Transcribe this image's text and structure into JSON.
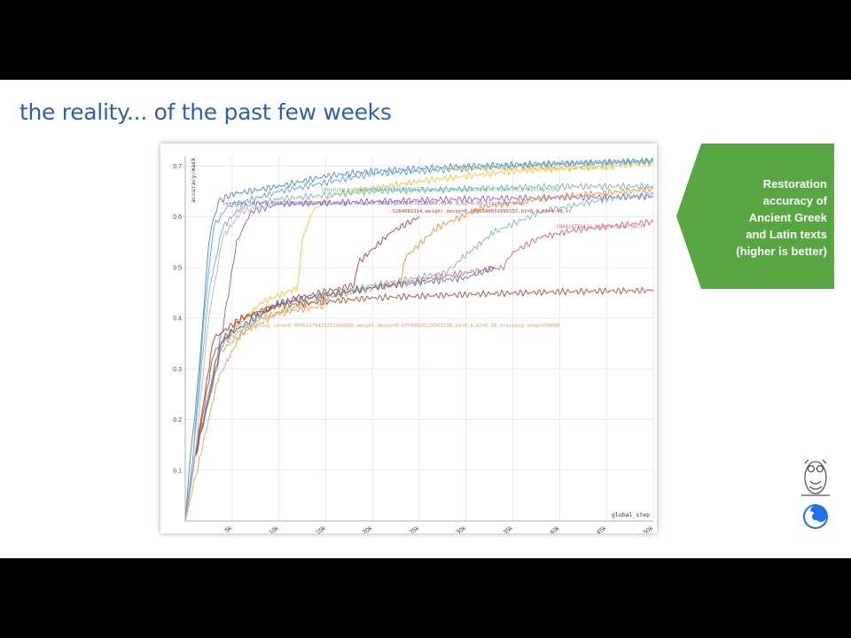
{
  "slide": {
    "title": "the reality... of the past few weeks",
    "callout": {
      "lines": [
        "Restoration",
        "accuracy of",
        "Ancient Greek",
        "and Latin texts",
        "(higher is better)"
      ],
      "color": "#58a642"
    }
  },
  "chart_data": {
    "type": "line",
    "ylabel": "accuracy/mask",
    "xlabel": "global_step",
    "xlim": [
      0,
      50000
    ],
    "ylim": [
      0,
      0.72
    ],
    "x_ticks": [
      {
        "value": 5000,
        "label": "5k"
      },
      {
        "value": 10000,
        "label": "10k"
      },
      {
        "value": 15000,
        "label": "15k"
      },
      {
        "value": 20000,
        "label": "20k"
      },
      {
        "value": 25000,
        "label": "25k"
      },
      {
        "value": 30000,
        "label": "30k"
      },
      {
        "value": 35000,
        "label": "35k"
      },
      {
        "value": 40000,
        "label": "40k"
      },
      {
        "value": 45000,
        "label": "45k"
      },
      {
        "value": 50000,
        "label": "50k"
      }
    ],
    "y_ticks": [
      {
        "value": 0.1,
        "label": "0.1"
      },
      {
        "value": 0.2,
        "label": "0.2"
      },
      {
        "value": 0.3,
        "label": "0.3"
      },
      {
        "value": 0.4,
        "label": "0.4"
      },
      {
        "value": 0.5,
        "label": "0.5"
      },
      {
        "value": 0.6,
        "label": "0.6"
      },
      {
        "value": 0.7,
        "label": "0.7"
      }
    ],
    "grid": true,
    "series": [
      {
        "color": "#4a86c8",
        "points": [
          [
            0,
            0
          ],
          [
            500,
            0.12
          ],
          [
            1500,
            0.3
          ],
          [
            2500,
            0.55
          ],
          [
            3500,
            0.63
          ],
          [
            5000,
            0.645
          ],
          [
            10000,
            0.66
          ],
          [
            15000,
            0.68
          ],
          [
            20000,
            0.69
          ],
          [
            30000,
            0.7
          ],
          [
            40000,
            0.705
          ],
          [
            50000,
            0.71
          ]
        ]
      },
      {
        "color": "#5aa0dc",
        "points": [
          [
            0,
            0
          ],
          [
            800,
            0.12
          ],
          [
            2000,
            0.4
          ],
          [
            3000,
            0.58
          ],
          [
            4500,
            0.62
          ],
          [
            10000,
            0.65
          ],
          [
            20000,
            0.685
          ],
          [
            30000,
            0.695
          ],
          [
            40000,
            0.705
          ],
          [
            50000,
            0.71
          ]
        ]
      },
      {
        "color": "#f1c232",
        "points": [
          [
            0,
            0
          ],
          [
            1000,
            0.12
          ],
          [
            4000,
            0.35
          ],
          [
            8000,
            0.43
          ],
          [
            12000,
            0.46
          ],
          [
            12500,
            0.55
          ],
          [
            13500,
            0.61
          ],
          [
            16000,
            0.645
          ],
          [
            25000,
            0.67
          ],
          [
            35000,
            0.69
          ],
          [
            50000,
            0.705
          ]
        ]
      },
      {
        "color": "#6fb8a8",
        "points": [
          [
            0,
            0
          ],
          [
            800,
            0.12
          ],
          [
            2500,
            0.45
          ],
          [
            4000,
            0.58
          ],
          [
            6000,
            0.62
          ],
          [
            10000,
            0.635
          ],
          [
            20000,
            0.65
          ],
          [
            30000,
            0.655
          ],
          [
            40000,
            0.66
          ],
          [
            50000,
            0.66
          ]
        ]
      },
      {
        "color": "#8a5cc0",
        "points": [
          [
            0,
            0
          ],
          [
            1000,
            0.12
          ],
          [
            4000,
            0.38
          ],
          [
            5500,
            0.55
          ],
          [
            7000,
            0.61
          ],
          [
            10000,
            0.625
          ],
          [
            20000,
            0.63
          ],
          [
            30000,
            0.635
          ],
          [
            40000,
            0.638
          ],
          [
            50000,
            0.64
          ]
        ]
      },
      {
        "color": "#c0392b",
        "points": [
          [
            0,
            0
          ],
          [
            1000,
            0.12
          ],
          [
            3000,
            0.36
          ],
          [
            6000,
            0.4
          ],
          [
            12000,
            0.44
          ],
          [
            18000,
            0.465
          ],
          [
            18500,
            0.51
          ],
          [
            22000,
            0.57
          ],
          [
            25000,
            0.6
          ]
        ]
      },
      {
        "color": "#e69138",
        "points": [
          [
            0,
            0
          ],
          [
            1000,
            0.12
          ],
          [
            3500,
            0.33
          ],
          [
            8000,
            0.4
          ],
          [
            15000,
            0.44
          ],
          [
            23000,
            0.47
          ],
          [
            23500,
            0.52
          ],
          [
            27000,
            0.58
          ],
          [
            32000,
            0.62
          ],
          [
            40000,
            0.64
          ],
          [
            50000,
            0.655
          ]
        ]
      },
      {
        "color": "#76b7b2",
        "points": [
          [
            0,
            0
          ],
          [
            1000,
            0.12
          ],
          [
            4000,
            0.35
          ],
          [
            10000,
            0.43
          ],
          [
            20000,
            0.465
          ],
          [
            28000,
            0.49
          ],
          [
            29000,
            0.51
          ],
          [
            33000,
            0.57
          ],
          [
            38000,
            0.61
          ],
          [
            45000,
            0.635
          ],
          [
            50000,
            0.645
          ]
        ]
      },
      {
        "color": "#d6607a",
        "points": [
          [
            0,
            0
          ],
          [
            1000,
            0.12
          ],
          [
            4000,
            0.36
          ],
          [
            10000,
            0.43
          ],
          [
            20000,
            0.46
          ],
          [
            30000,
            0.49
          ],
          [
            34000,
            0.5
          ],
          [
            35000,
            0.53
          ],
          [
            38000,
            0.56
          ],
          [
            42000,
            0.575
          ],
          [
            50000,
            0.59
          ]
        ]
      },
      {
        "color": "#5577aa",
        "points": [
          [
            0,
            0
          ],
          [
            1000,
            0.12
          ],
          [
            4000,
            0.36
          ],
          [
            10000,
            0.43
          ],
          [
            20000,
            0.46
          ],
          [
            30000,
            0.48
          ],
          [
            33000,
            0.5
          ]
        ]
      },
      {
        "color": "#a0522d",
        "points": [
          [
            0,
            0
          ],
          [
            1000,
            0.12
          ],
          [
            3000,
            0.33
          ],
          [
            6000,
            0.4
          ],
          [
            10000,
            0.425
          ],
          [
            20000,
            0.44
          ],
          [
            30000,
            0.447
          ],
          [
            40000,
            0.452
          ],
          [
            50000,
            0.455
          ]
        ]
      },
      {
        "color": "#e0a25a",
        "points": [
          [
            0,
            0
          ],
          [
            1500,
            0.12
          ],
          [
            3500,
            0.28
          ],
          [
            6000,
            0.37
          ],
          [
            10000,
            0.41
          ],
          [
            15000,
            0.425
          ]
        ]
      },
      {
        "color": "#c5a8e0",
        "points": [
          [
            0,
            0
          ],
          [
            1000,
            0.12
          ],
          [
            2500,
            0.4
          ],
          [
            4000,
            0.56
          ],
          [
            6000,
            0.61
          ],
          [
            9000,
            0.625
          ]
        ]
      }
    ],
    "annotations": [
      {
        "text": "learning_rate=0.0000644180655186375,weight_decay=10,b1=0.9,b2=0.98,training_step",
        "x": 14500,
        "y": 0.651,
        "color": "#4fa39a"
      },
      {
        "text": "learning_rate=0.00001696038282123619,weight_decay=0.00037985454731320604,b1=0.9,b2=0.99,training_step",
        "x": 4000,
        "y": 0.624,
        "color": "#8a5cc0"
      },
      {
        "text": "..56278234,weight_decay=0.16556558002413,b1=0.9,b2=0.98,tr",
        "x": 27500,
        "y": 0.693,
        "color": "#e0b020"
      },
      {
        "text": "..5284082114,weight_decay=0.0058580031995137,b1=0.9,b2=0.98,tr",
        "x": 21500,
        "y": 0.608,
        "color": "#c0392b"
      },
      {
        "text": "..596818755124,b1=0.9,b2=0.98,tr",
        "x": 39000,
        "y": 0.578,
        "color": "#d6607a"
      },
      {
        "text": "learning_rate=0.00001178423252166888,weight_decay=0.07508020125563238,b1=0.9,b2=0.99,training_steps=50000",
        "x": 6500,
        "y": 0.383,
        "color": "#e0a25a"
      },
      {
        "text": "..tr",
        "x": 50000,
        "y": 0.452,
        "color": "#a0522d"
      }
    ]
  }
}
